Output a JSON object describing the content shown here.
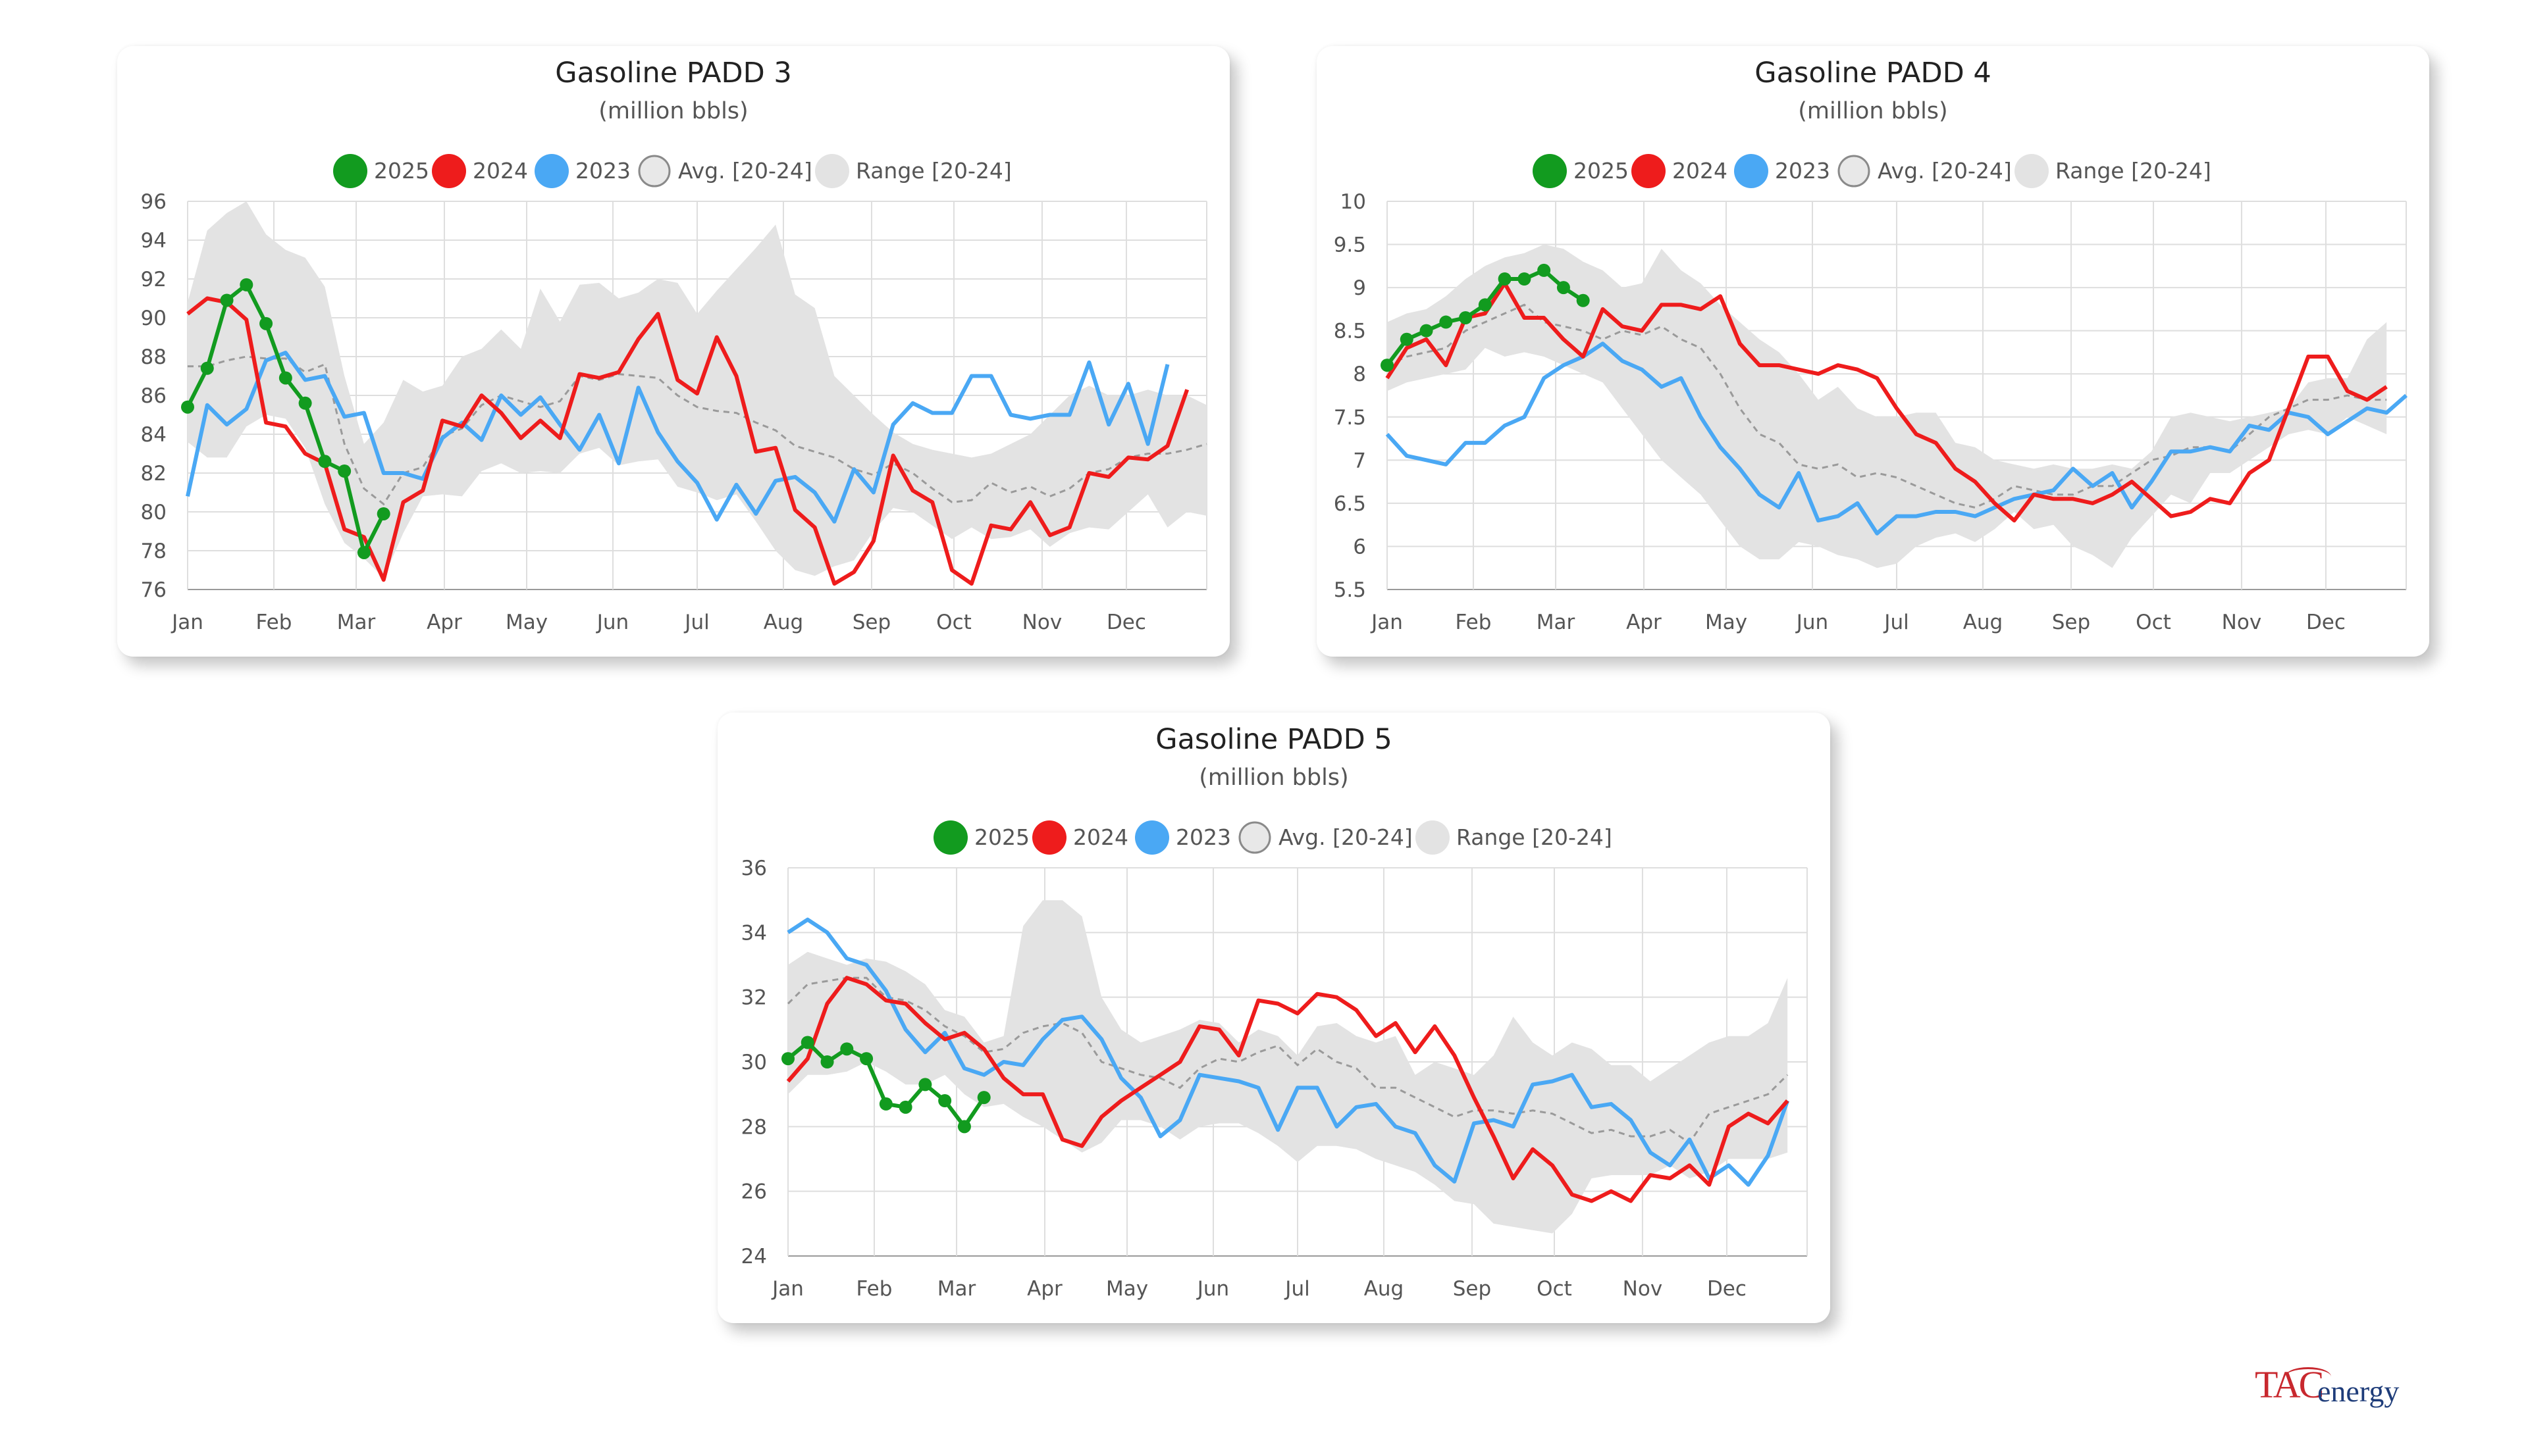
{
  "colors": {
    "y2025": "#129b1f",
    "y2024": "#ee1c1c",
    "y2023": "#4aa8f4",
    "avg": "#9a9a9a",
    "range": "#e3e3e3"
  },
  "legend": [
    {
      "key": "y2025",
      "label": "2025",
      "icon": "filled-circle"
    },
    {
      "key": "y2024",
      "label": "2024",
      "icon": "filled-circle"
    },
    {
      "key": "y2023",
      "label": "2023",
      "icon": "filled-circle"
    },
    {
      "key": "avg",
      "label": "Avg. [20-24]",
      "icon": "hollow-circle"
    },
    {
      "key": "range",
      "label": "Range [20-24]",
      "icon": "filled-circle"
    }
  ],
  "months": [
    "Jan",
    "Feb",
    "Mar",
    "Apr",
    "May",
    "Jun",
    "Jul",
    "Aug",
    "Sep",
    "Oct",
    "Nov",
    "Dec"
  ],
  "chart_data": [
    {
      "id": "padd3",
      "type": "line",
      "title": "Gasoline PADD 3",
      "subtitle": "(million bbls)",
      "xlabel": "",
      "ylabel": "",
      "ylim": [
        76,
        96
      ],
      "yticks": [
        "96",
        "94",
        "92",
        "90",
        "88",
        "86",
        "84",
        "82",
        "80",
        "78",
        "76"
      ],
      "series": [
        {
          "name": "2025",
          "values": [
            85.4,
            87.4,
            90.9,
            91.7,
            89.7,
            86.9,
            85.6,
            82.6,
            82.1,
            77.9,
            79.9
          ]
        },
        {
          "name": "2024",
          "values": [
            90.2,
            91.0,
            90.8,
            89.9,
            84.6,
            84.4,
            83.0,
            82.5,
            79.1,
            78.7,
            76.5,
            80.5,
            81.1,
            84.7,
            84.4,
            86.0,
            85.1,
            83.8,
            84.7,
            83.8,
            87.1,
            86.9,
            87.2,
            88.9,
            90.2,
            86.8,
            86.1,
            89.0,
            87.0,
            83.1,
            83.3,
            80.1,
            79.2,
            76.3,
            76.9,
            78.5,
            82.9,
            81.1,
            80.5,
            77.0,
            76.3,
            79.3,
            79.1,
            80.5,
            78.8,
            79.2,
            82.0,
            81.8,
            82.8,
            82.7,
            83.4,
            86.3
          ]
        },
        {
          "name": "2023",
          "values": [
            80.8,
            85.5,
            84.5,
            85.3,
            87.8,
            88.2,
            86.8,
            87.0,
            84.9,
            85.1,
            82.0,
            82.0,
            81.7,
            83.8,
            84.6,
            83.7,
            86.0,
            85.0,
            85.9,
            84.5,
            83.2,
            85.0,
            82.5,
            86.4,
            84.1,
            82.6,
            81.5,
            79.6,
            81.4,
            79.9,
            81.6,
            81.8,
            81.0,
            79.5,
            82.2,
            81.0,
            84.5,
            85.6,
            85.1,
            85.1,
            87.0,
            87.0,
            85.0,
            84.8,
            85.0,
            85.0,
            87.7,
            84.5,
            86.6,
            83.5,
            87.6
          ]
        },
        {
          "name": "Avg. [20-24]",
          "values": [
            87.5,
            87.5,
            87.8,
            88.0,
            87.9,
            87.9,
            87.2,
            87.6,
            83.5,
            81.2,
            80.4,
            82.0,
            82.3,
            83.9,
            84.3,
            85.5,
            86.0,
            85.7,
            85.4,
            85.7,
            87.0,
            86.8,
            87.1,
            87.0,
            86.9,
            86.0,
            85.4,
            85.2,
            85.1,
            84.6,
            84.2,
            83.4,
            83.1,
            82.8,
            82.2,
            81.9,
            82.5,
            82.0,
            81.2,
            80.5,
            80.6,
            81.5,
            81.0,
            81.3,
            80.8,
            81.2,
            82.0,
            82.2,
            82.8,
            83.0,
            83.0,
            83.2,
            83.5
          ]
        },
        {
          "name": "Range max [20-24]",
          "values": [
            90.8,
            94.5,
            95.4,
            96.0,
            94.3,
            93.5,
            93.1,
            91.6,
            87.0,
            83.5,
            84.6,
            86.8,
            86.2,
            86.5,
            88.0,
            88.4,
            89.4,
            88.4,
            91.5,
            89.8,
            91.7,
            91.8,
            91.0,
            91.3,
            92.0,
            91.8,
            90.2,
            91.4,
            92.5,
            93.6,
            94.8,
            91.2,
            90.5,
            87.0,
            86.0,
            85.0,
            84.1,
            83.5,
            83.2,
            83.0,
            82.8,
            83.0,
            83.5,
            84.0,
            85.0,
            86.0,
            86.5,
            86.0,
            86.0,
            86.3,
            86.0,
            86.0,
            85.5
          ]
        },
        {
          "name": "Range min [20-24]",
          "values": [
            83.6,
            82.8,
            82.8,
            84.4,
            85.0,
            84.8,
            83.3,
            80.4,
            78.4,
            77.6,
            76.6,
            78.9,
            80.8,
            80.9,
            80.8,
            82.1,
            82.5,
            82.0,
            82.1,
            82.0,
            83.0,
            83.3,
            82.4,
            82.6,
            82.7,
            81.3,
            81.0,
            80.6,
            80.9,
            79.5,
            78.0,
            77.0,
            76.7,
            77.2,
            77.5,
            79.0,
            80.2,
            80.0,
            79.3,
            78.6,
            79.2,
            78.6,
            78.7,
            79.1,
            78.2,
            78.9,
            79.2,
            79.1,
            80.0,
            80.9,
            79.2,
            80.0,
            79.8
          ]
        }
      ]
    },
    {
      "id": "padd4",
      "type": "line",
      "title": "Gasoline PADD 4",
      "subtitle": "(million bbls)",
      "xlabel": "",
      "ylabel": "",
      "ylim": [
        5.5,
        10
      ],
      "yticks": [
        "10",
        "9.5",
        "9",
        "8.5",
        "8",
        "7.5",
        "7",
        "6.5",
        "6",
        "5.5"
      ],
      "series": [
        {
          "name": "2025",
          "values": [
            8.1,
            8.4,
            8.5,
            8.6,
            8.65,
            8.8,
            9.1,
            9.1,
            9.2,
            9.0,
            8.85
          ]
        },
        {
          "name": "2024",
          "values": [
            7.95,
            8.3,
            8.4,
            8.1,
            8.65,
            8.7,
            9.05,
            8.65,
            8.65,
            8.4,
            8.2,
            8.75,
            8.55,
            8.5,
            8.8,
            8.8,
            8.75,
            8.9,
            8.35,
            8.1,
            8.1,
            8.05,
            8.0,
            8.1,
            8.05,
            7.95,
            7.6,
            7.3,
            7.2,
            6.9,
            6.75,
            6.5,
            6.3,
            6.6,
            6.55,
            6.55,
            6.5,
            6.6,
            6.75,
            6.55,
            6.35,
            6.4,
            6.55,
            6.5,
            6.85,
            7.0,
            7.6,
            8.2,
            8.2,
            7.8,
            7.7,
            7.85
          ]
        },
        {
          "name": "2023",
          "values": [
            7.3,
            7.05,
            7.0,
            6.95,
            7.2,
            7.2,
            7.4,
            7.5,
            7.95,
            8.1,
            8.2,
            8.35,
            8.15,
            8.05,
            7.85,
            7.95,
            7.5,
            7.15,
            6.9,
            6.6,
            6.45,
            6.85,
            6.3,
            6.35,
            6.5,
            6.15,
            6.35,
            6.35,
            6.4,
            6.4,
            6.35,
            6.45,
            6.55,
            6.6,
            6.65,
            6.9,
            6.7,
            6.85,
            6.45,
            6.75,
            7.1,
            7.1,
            7.15,
            7.1,
            7.4,
            7.35,
            7.55,
            7.5,
            7.3,
            7.45,
            7.6,
            7.55,
            7.75
          ]
        },
        {
          "name": "Avg. [20-24]",
          "values": [
            8.1,
            8.2,
            8.25,
            8.3,
            8.5,
            8.6,
            8.7,
            8.8,
            8.6,
            8.55,
            8.5,
            8.4,
            8.5,
            8.45,
            8.55,
            8.4,
            8.3,
            8.0,
            7.6,
            7.3,
            7.2,
            6.95,
            6.9,
            6.95,
            6.8,
            6.85,
            6.8,
            6.7,
            6.6,
            6.5,
            6.45,
            6.55,
            6.7,
            6.65,
            6.6,
            6.6,
            6.7,
            6.7,
            6.85,
            7.0,
            7.05,
            7.15,
            7.15,
            7.1,
            7.3,
            7.5,
            7.6,
            7.7,
            7.7,
            7.75,
            7.7,
            7.7
          ]
        },
        {
          "name": "Range max [20-24]",
          "values": [
            8.6,
            8.7,
            8.75,
            8.9,
            9.1,
            9.25,
            9.35,
            9.4,
            9.5,
            9.45,
            9.3,
            9.2,
            9.0,
            9.05,
            9.45,
            9.2,
            9.05,
            8.8,
            8.6,
            8.4,
            8.25,
            8.0,
            7.7,
            7.85,
            7.6,
            7.5,
            7.5,
            7.55,
            7.55,
            7.2,
            7.15,
            7.0,
            6.95,
            6.9,
            6.95,
            6.9,
            6.9,
            6.95,
            6.9,
            7.1,
            7.5,
            7.55,
            7.5,
            7.45,
            7.5,
            7.55,
            7.6,
            7.9,
            7.95,
            7.95,
            8.4,
            8.6
          ]
        },
        {
          "name": "Range min [20-24]",
          "values": [
            7.8,
            7.9,
            7.95,
            8.0,
            8.05,
            8.3,
            8.2,
            8.25,
            8.2,
            8.1,
            8.0,
            7.9,
            7.6,
            7.3,
            7.0,
            6.8,
            6.6,
            6.3,
            6.0,
            5.85,
            5.85,
            6.05,
            6.0,
            5.9,
            5.85,
            5.75,
            5.8,
            6.0,
            6.1,
            6.15,
            6.05,
            6.2,
            6.4,
            6.2,
            6.25,
            6.0,
            5.9,
            5.75,
            6.1,
            6.35,
            6.6,
            6.5,
            6.85,
            6.85,
            7.0,
            7.15,
            7.3,
            7.35,
            7.3,
            7.5,
            7.4,
            7.3
          ]
        }
      ]
    },
    {
      "id": "padd5",
      "type": "line",
      "title": "Gasoline PADD 5",
      "subtitle": "(million bbls)",
      "xlabel": "",
      "ylabel": "",
      "ylim": [
        24,
        36
      ],
      "yticks": [
        "36",
        "34",
        "32",
        "30",
        "28",
        "26",
        "24"
      ],
      "series": [
        {
          "name": "2025",
          "values": [
            30.1,
            30.6,
            30.0,
            30.4,
            30.1,
            28.7,
            28.6,
            29.3,
            28.8,
            28.0,
            28.9
          ]
        },
        {
          "name": "2024",
          "values": [
            29.4,
            30.1,
            31.8,
            32.6,
            32.4,
            31.9,
            31.8,
            31.2,
            30.7,
            30.9,
            30.4,
            29.5,
            29.0,
            29.0,
            27.6,
            27.4,
            28.3,
            28.8,
            29.2,
            29.6,
            30.0,
            31.1,
            31.0,
            30.2,
            31.9,
            31.8,
            31.5,
            32.1,
            32.0,
            31.6,
            30.8,
            31.2,
            30.3,
            31.1,
            30.2,
            28.9,
            27.7,
            26.4,
            27.3,
            26.8,
            25.9,
            25.7,
            26.0,
            25.7,
            26.5,
            26.4,
            26.8,
            26.2,
            28.0,
            28.4,
            28.1,
            28.8
          ]
        },
        {
          "name": "2023",
          "values": [
            34.0,
            34.4,
            34.0,
            33.2,
            33.0,
            32.2,
            31.0,
            30.3,
            30.9,
            29.8,
            29.6,
            30.0,
            29.9,
            30.7,
            31.3,
            31.4,
            30.7,
            29.5,
            28.9,
            27.7,
            28.2,
            29.6,
            29.5,
            29.4,
            29.2,
            27.9,
            29.2,
            29.2,
            28.0,
            28.6,
            28.7,
            28.0,
            27.8,
            26.8,
            26.3,
            28.1,
            28.2,
            28.0,
            29.3,
            29.4,
            29.6,
            28.6,
            28.7,
            28.2,
            27.2,
            26.8,
            27.6,
            26.4,
            26.8,
            26.2,
            27.1,
            28.8
          ]
        },
        {
          "name": "Avg. [20-24]",
          "values": [
            31.8,
            32.4,
            32.5,
            32.6,
            32.6,
            32.0,
            31.9,
            31.6,
            31.1,
            30.8,
            30.3,
            30.4,
            30.9,
            31.1,
            31.2,
            30.9,
            30.0,
            29.8,
            29.6,
            29.5,
            29.2,
            29.8,
            30.1,
            30.0,
            30.3,
            30.5,
            29.9,
            30.4,
            30.0,
            29.8,
            29.2,
            29.2,
            28.9,
            28.6,
            28.3,
            28.5,
            28.5,
            28.4,
            28.5,
            28.4,
            28.1,
            27.8,
            27.9,
            27.7,
            27.7,
            27.9,
            27.5,
            28.4,
            28.6,
            28.8,
            29.0,
            29.6
          ]
        },
        {
          "name": "Range max [20-24]",
          "values": [
            33.0,
            33.4,
            33.2,
            33.0,
            33.2,
            33.1,
            32.8,
            32.4,
            31.6,
            31.4,
            30.6,
            30.8,
            34.2,
            35.0,
            35.0,
            34.5,
            32.0,
            31.0,
            30.6,
            30.8,
            31.0,
            31.3,
            31.2,
            30.6,
            31.0,
            30.8,
            30.2,
            31.1,
            31.2,
            30.8,
            30.6,
            30.8,
            29.6,
            30.0,
            29.8,
            29.6,
            30.2,
            31.4,
            30.6,
            30.2,
            30.6,
            30.4,
            29.9,
            29.9,
            29.4,
            29.8,
            30.2,
            30.6,
            30.8,
            30.8,
            31.2,
            32.6
          ]
        },
        {
          "name": "Range min [20-24]",
          "values": [
            29.0,
            29.6,
            29.6,
            29.7,
            30.0,
            29.7,
            29.3,
            29.3,
            29.6,
            29.0,
            28.6,
            28.7,
            28.3,
            28.0,
            27.6,
            27.2,
            27.5,
            28.2,
            28.2,
            28.0,
            27.6,
            28.0,
            28.1,
            28.1,
            27.8,
            27.4,
            26.9,
            27.4,
            27.4,
            27.3,
            27.0,
            26.8,
            26.6,
            26.2,
            25.7,
            25.6,
            25.0,
            24.9,
            24.8,
            24.7,
            25.3,
            26.4,
            26.5,
            26.5,
            26.5,
            26.8,
            26.4,
            26.6,
            27.0,
            27.0,
            27.0,
            27.2
          ]
        }
      ]
    }
  ],
  "logo": {
    "tac": "TAC",
    "energy": "energy"
  }
}
